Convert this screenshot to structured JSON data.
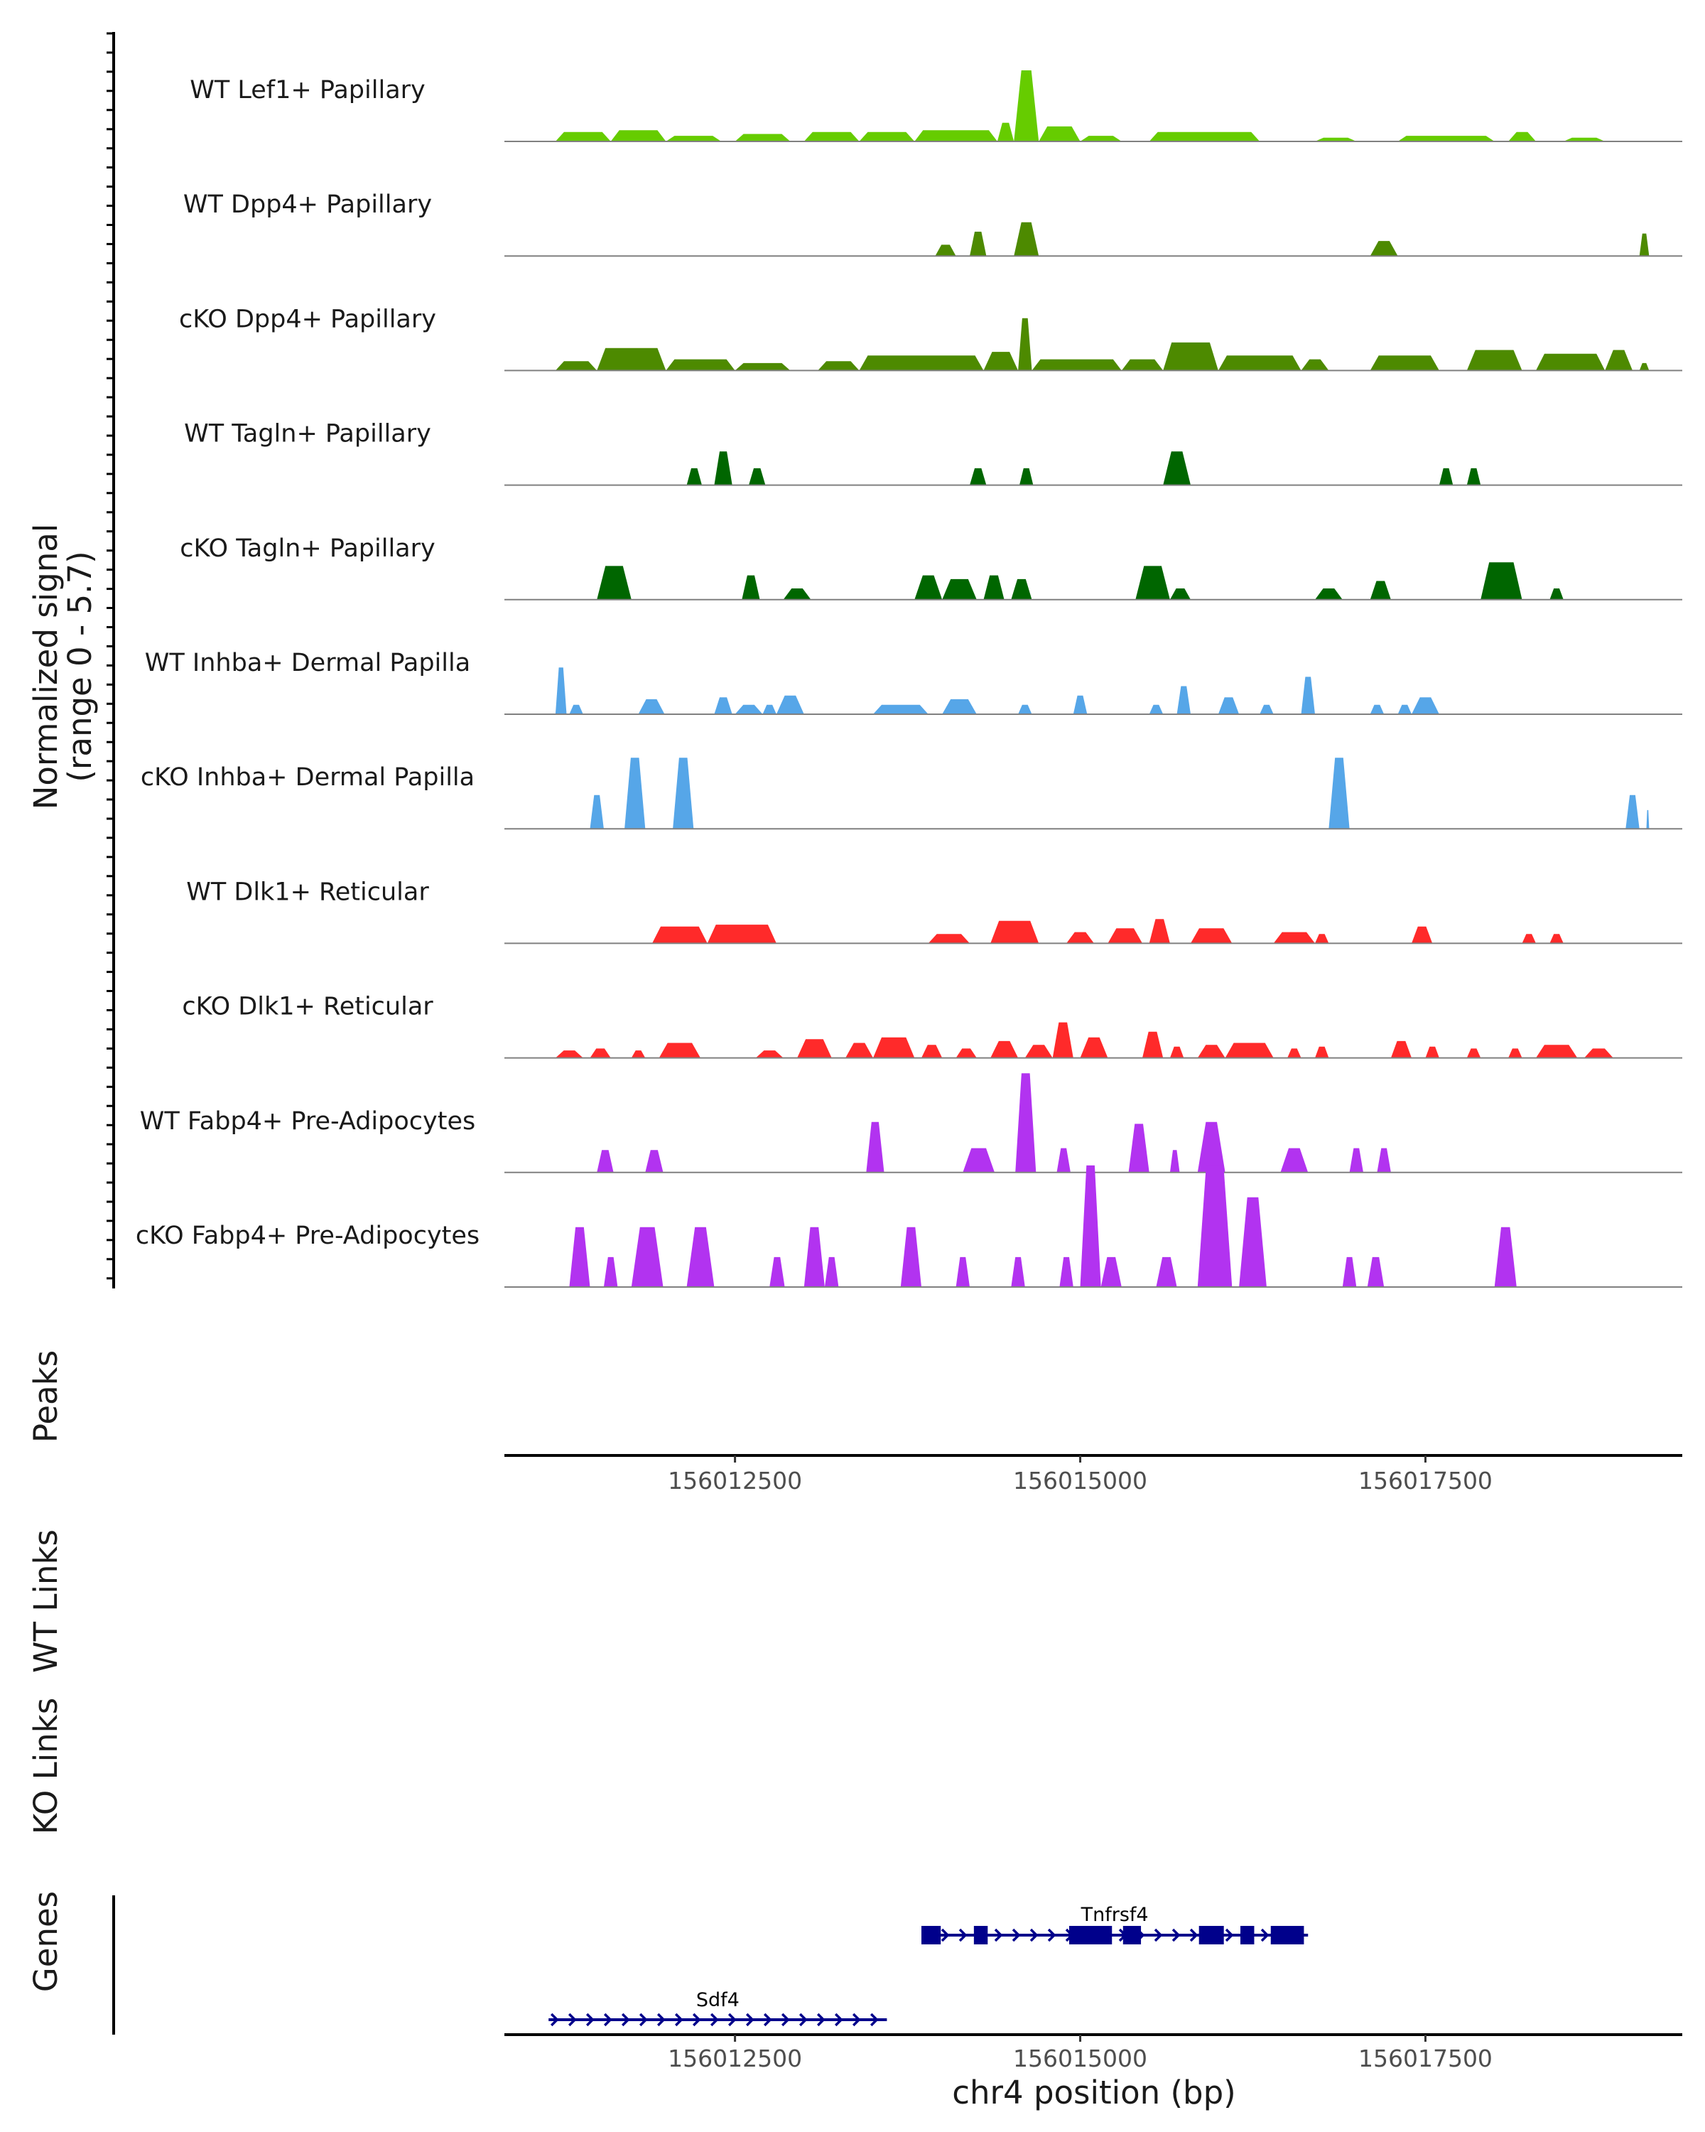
{
  "chart_data": {
    "type": "area",
    "title": "",
    "ylabel": "Normalized signal",
    "ylabel_range": "(range 0 - 5.7)",
    "ylim": [
      0,
      5.7
    ],
    "x_range": [
      156010830,
      156019360
    ],
    "xlabel": "chr4 position (bp)",
    "x_ticks": [
      156012500,
      156015000,
      156017500
    ],
    "x_tick_labels": [
      "156012500",
      "156015000",
      "156017500"
    ],
    "tracks": [
      {
        "name": "WT Lef1+ Papillary",
        "color": "#66cc00",
        "peaks": [
          [
            156011200,
            156011600,
            0.5
          ],
          [
            156011600,
            156012000,
            0.6
          ],
          [
            156012000,
            156012400,
            0.3
          ],
          [
            156012500,
            156012900,
            0.4
          ],
          [
            156013000,
            156013400,
            0.5
          ],
          [
            156013400,
            156013800,
            0.5
          ],
          [
            156013800,
            156014400,
            0.6
          ],
          [
            156014400,
            156014520,
            1.0
          ],
          [
            156014520,
            156014700,
            3.8
          ],
          [
            156014700,
            156015000,
            0.8
          ],
          [
            156015000,
            156015300,
            0.3
          ],
          [
            156015500,
            156016300,
            0.5
          ],
          [
            156016700,
            156017000,
            0.2
          ],
          [
            156017300,
            156018000,
            0.3
          ],
          [
            156018100,
            156018300,
            0.5
          ],
          [
            156018500,
            156018800,
            0.2
          ]
        ]
      },
      {
        "name": "WT Dpp4+ Papillary",
        "color": "#4d8a00",
        "peaks": [
          [
            156013950,
            156014100,
            0.6
          ],
          [
            156014200,
            156014320,
            1.3
          ],
          [
            156014520,
            156014700,
            1.8
          ],
          [
            156017100,
            156017300,
            0.8
          ],
          [
            156019050,
            156019120,
            1.2
          ]
        ]
      },
      {
        "name": "cKO Dpp4+ Papillary",
        "color": "#4d8a00",
        "peaks": [
          [
            156011200,
            156011500,
            0.5
          ],
          [
            156011500,
            156012000,
            1.2
          ],
          [
            156012000,
            156012500,
            0.6
          ],
          [
            156012500,
            156012900,
            0.4
          ],
          [
            156013100,
            156013400,
            0.5
          ],
          [
            156013400,
            156014300,
            0.8
          ],
          [
            156014300,
            156014550,
            1.0
          ],
          [
            156014550,
            156014650,
            2.8
          ],
          [
            156014650,
            156015300,
            0.6
          ],
          [
            156015300,
            156015600,
            0.6
          ],
          [
            156015600,
            156016000,
            1.5
          ],
          [
            156016000,
            156016600,
            0.8
          ],
          [
            156016600,
            156016800,
            0.6
          ],
          [
            156017100,
            156017600,
            0.8
          ],
          [
            156017800,
            156018200,
            1.1
          ],
          [
            156018300,
            156018800,
            0.9
          ],
          [
            156018800,
            156019000,
            1.1
          ],
          [
            156019050,
            156019120,
            0.4
          ]
        ]
      },
      {
        "name": "WT Tagln+ Papillary",
        "color": "#006600",
        "peaks": [
          [
            156012150,
            156012260,
            0.9
          ],
          [
            156012350,
            156012480,
            1.8
          ],
          [
            156012600,
            156012720,
            0.9
          ],
          [
            156014200,
            156014320,
            0.9
          ],
          [
            156014560,
            156014660,
            0.9
          ],
          [
            156015600,
            156015800,
            1.8
          ],
          [
            156017600,
            156017700,
            0.9
          ],
          [
            156017800,
            156017900,
            0.9
          ]
        ]
      },
      {
        "name": "cKO Tagln+ Papillary",
        "color": "#006600",
        "peaks": [
          [
            156011500,
            156011750,
            1.8
          ],
          [
            156012550,
            156012680,
            1.3
          ],
          [
            156012850,
            156013050,
            0.6
          ],
          [
            156013800,
            156014000,
            1.3
          ],
          [
            156014000,
            156014250,
            1.1
          ],
          [
            156014300,
            156014450,
            1.3
          ],
          [
            156014500,
            156014650,
            1.1
          ],
          [
            156015400,
            156015650,
            1.8
          ],
          [
            156015650,
            156015800,
            0.6
          ],
          [
            156016700,
            156016900,
            0.6
          ],
          [
            156017100,
            156017250,
            1.0
          ],
          [
            156017900,
            156018200,
            2.0
          ],
          [
            156018400,
            156018500,
            0.6
          ]
        ]
      },
      {
        "name": "WT Inhba+ Dermal Papilla",
        "color": "#56a6e8",
        "peaks": [
          [
            156011200,
            156011280,
            2.5
          ],
          [
            156011300,
            156011400,
            0.5
          ],
          [
            156011800,
            156011990,
            0.8
          ],
          [
            156012350,
            156012480,
            0.9
          ],
          [
            156012500,
            156012700,
            0.5
          ],
          [
            156012700,
            156012800,
            0.5
          ],
          [
            156012800,
            156013000,
            1.0
          ],
          [
            156013500,
            156013900,
            0.5
          ],
          [
            156014000,
            156014250,
            0.8
          ],
          [
            156014550,
            156014650,
            0.5
          ],
          [
            156014950,
            156015050,
            1.0
          ],
          [
            156015500,
            156015600,
            0.5
          ],
          [
            156015700,
            156015800,
            1.5
          ],
          [
            156016000,
            156016150,
            0.9
          ],
          [
            156016300,
            156016400,
            0.5
          ],
          [
            156016600,
            156016700,
            2.0
          ],
          [
            156017100,
            156017200,
            0.5
          ],
          [
            156017300,
            156017400,
            0.5
          ],
          [
            156017400,
            156017600,
            0.9
          ]
        ]
      },
      {
        "name": "cKO Inhba+ Dermal Papilla",
        "color": "#56a6e8",
        "peaks": [
          [
            156011450,
            156011550,
            1.8
          ],
          [
            156011700,
            156011850,
            3.8
          ],
          [
            156012050,
            156012200,
            3.8
          ],
          [
            156016800,
            156016950,
            3.8
          ],
          [
            156018950,
            156019050,
            1.8
          ],
          [
            156019100,
            156019120,
            1.0
          ]
        ]
      },
      {
        "name": "WT Dlk1+ Reticular",
        "color": "#ff2a2a",
        "peaks": [
          [
            156011900,
            156012300,
            0.9
          ],
          [
            156012300,
            156012800,
            1.0
          ],
          [
            156013900,
            156014200,
            0.5
          ],
          [
            156014350,
            156014700,
            1.2
          ],
          [
            156014900,
            156015100,
            0.6
          ],
          [
            156015200,
            156015450,
            0.8
          ],
          [
            156015500,
            156015650,
            1.3
          ],
          [
            156015800,
            156016100,
            0.8
          ],
          [
            156016400,
            156016700,
            0.6
          ],
          [
            156016700,
            156016800,
            0.5
          ],
          [
            156017400,
            156017550,
            0.9
          ],
          [
            156018200,
            156018300,
            0.5
          ],
          [
            156018400,
            156018500,
            0.5
          ]
        ]
      },
      {
        "name": "cKO Dlk1+ Reticular",
        "color": "#ff2a2a",
        "peaks": [
          [
            156011200,
            156011400,
            0.4
          ],
          [
            156011450,
            156011600,
            0.5
          ],
          [
            156011750,
            156011850,
            0.4
          ],
          [
            156011950,
            156012250,
            0.8
          ],
          [
            156012650,
            156012850,
            0.4
          ],
          [
            156012950,
            156013200,
            1.0
          ],
          [
            156013300,
            156013500,
            0.8
          ],
          [
            156013500,
            156013800,
            1.1
          ],
          [
            156013850,
            156014000,
            0.7
          ],
          [
            156014100,
            156014250,
            0.5
          ],
          [
            156014350,
            156014550,
            0.9
          ],
          [
            156014600,
            156014800,
            0.7
          ],
          [
            156014800,
            156014950,
            1.9
          ],
          [
            156015000,
            156015200,
            1.1
          ],
          [
            156015450,
            156015600,
            1.4
          ],
          [
            156015650,
            156015750,
            0.6
          ],
          [
            156015850,
            156016050,
            0.7
          ],
          [
            156016050,
            156016400,
            0.8
          ],
          [
            156016500,
            156016600,
            0.5
          ],
          [
            156016700,
            156016800,
            0.6
          ],
          [
            156017250,
            156017400,
            0.9
          ],
          [
            156017500,
            156017600,
            0.6
          ],
          [
            156017800,
            156017900,
            0.5
          ],
          [
            156018100,
            156018200,
            0.5
          ],
          [
            156018300,
            156018600,
            0.7
          ],
          [
            156018650,
            156018860,
            0.5
          ]
        ]
      },
      {
        "name": "WT Fabp4+ Pre-Adipocytes",
        "color": "#b233f0",
        "peaks": [
          [
            156011500,
            156011620,
            1.2
          ],
          [
            156011850,
            156011980,
            1.2
          ],
          [
            156013450,
            156013580,
            2.7
          ],
          [
            156014150,
            156014380,
            1.3
          ],
          [
            156014530,
            156014680,
            5.3
          ],
          [
            156014830,
            156014930,
            1.3
          ],
          [
            156015350,
            156015500,
            2.6
          ],
          [
            156015650,
            156015720,
            1.2
          ],
          [
            156015850,
            156016050,
            2.7
          ],
          [
            156016450,
            156016650,
            1.3
          ],
          [
            156016950,
            156017050,
            1.3
          ],
          [
            156017150,
            156017250,
            1.3
          ]
        ]
      },
      {
        "name": "cKO Fabp4+ Pre-Adipocytes",
        "color": "#b233f0",
        "peaks": [
          [
            156011300,
            156011450,
            3.2
          ],
          [
            156011550,
            156011650,
            1.6
          ],
          [
            156011750,
            156011980,
            3.2
          ],
          [
            156012150,
            156012350,
            3.2
          ],
          [
            156012750,
            156012860,
            1.6
          ],
          [
            156013000,
            156013150,
            3.2
          ],
          [
            156013150,
            156013250,
            1.6
          ],
          [
            156013700,
            156013850,
            3.2
          ],
          [
            156014100,
            156014200,
            1.6
          ],
          [
            156014500,
            156014600,
            1.6
          ],
          [
            156014850,
            156014950,
            1.6
          ],
          [
            156015000,
            156015150,
            6.5
          ],
          [
            156015150,
            156015300,
            1.6
          ],
          [
            156015550,
            156015700,
            1.6
          ],
          [
            156015850,
            156016100,
            6.5
          ],
          [
            156016150,
            156016350,
            4.8
          ],
          [
            156016900,
            156017000,
            1.6
          ],
          [
            156017080,
            156017200,
            1.6
          ],
          [
            156018000,
            156018160,
            3.2
          ]
        ]
      }
    ],
    "panels": [
      "Peaks",
      "WT Links",
      "KO Links",
      "Genes"
    ],
    "genes": [
      {
        "name": "Tnfrsf4",
        "strand": "+",
        "start": 156013850,
        "end": 156016650,
        "exons": [
          [
            156013850,
            156013990
          ],
          [
            156014230,
            156014330
          ],
          [
            156014920,
            156015230
          ],
          [
            156015310,
            156015440
          ],
          [
            156015860,
            156016040
          ],
          [
            156016160,
            156016260
          ],
          [
            156016380,
            156016620
          ]
        ]
      },
      {
        "name": "Sdf4",
        "strand": "+",
        "start": 156011150,
        "end": 156013600,
        "exons": []
      }
    ]
  }
}
